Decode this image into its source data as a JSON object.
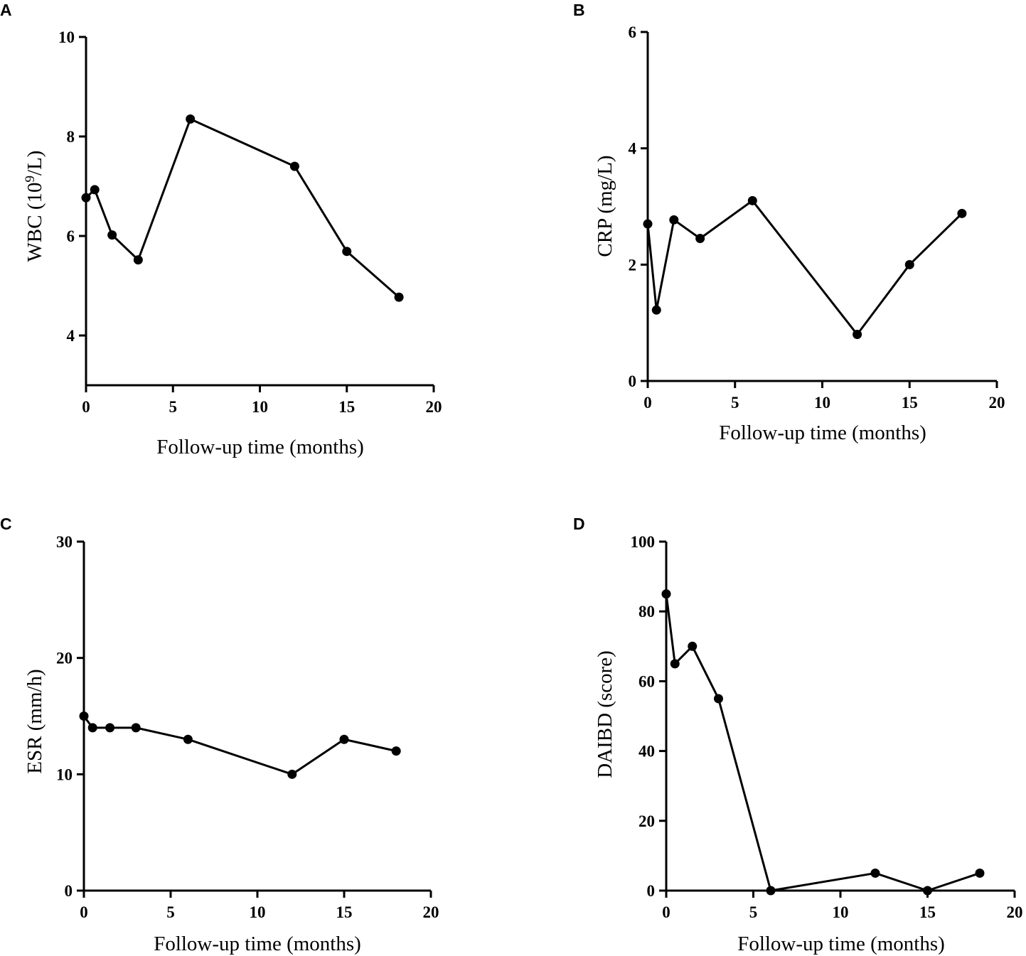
{
  "chart_data": [
    {
      "type": "line",
      "panel": "A",
      "x": [
        0,
        0.5,
        1.5,
        3,
        6,
        12,
        15,
        18
      ],
      "values": [
        6.77,
        6.93,
        6.02,
        5.52,
        8.35,
        7.4,
        5.69,
        4.77
      ],
      "xlabel": "Follow-up time (months)",
      "ylabel_main": "WBC (10",
      "ylabel_sup": "9",
      "ylabel_end": "/L)",
      "xlim": [
        0,
        20
      ],
      "ylim": [
        3,
        10
      ],
      "xticks": [
        0,
        5,
        10,
        15,
        20
      ],
      "yticks": [
        4,
        6,
        8,
        10
      ],
      "grid": false
    },
    {
      "type": "line",
      "panel": "B",
      "x": [
        0,
        0.5,
        1.5,
        3,
        6,
        12,
        15,
        18
      ],
      "values": [
        2.7,
        1.22,
        2.77,
        2.45,
        3.1,
        0.8,
        2.0,
        2.88
      ],
      "xlabel": "Follow-up time (months)",
      "ylabel": "CRP (mg/L)",
      "xlim": [
        0,
        20
      ],
      "ylim": [
        0,
        6
      ],
      "xticks": [
        0,
        5,
        10,
        15,
        20
      ],
      "yticks": [
        0,
        2,
        4,
        6
      ],
      "grid": false
    },
    {
      "type": "line",
      "panel": "C",
      "x": [
        0,
        0.5,
        1.5,
        3,
        6,
        12,
        15,
        18
      ],
      "values": [
        15,
        14,
        14,
        14,
        13,
        10,
        13,
        12
      ],
      "xlabel": "Follow-up time (months)",
      "ylabel": "ESR (mm/h)",
      "xlim": [
        0,
        20
      ],
      "ylim": [
        0,
        30
      ],
      "xticks": [
        0,
        5,
        10,
        15,
        20
      ],
      "yticks": [
        0,
        10,
        20,
        30
      ],
      "grid": false
    },
    {
      "type": "line",
      "panel": "D",
      "x": [
        0,
        0.5,
        1.5,
        3,
        6,
        12,
        15,
        18
      ],
      "values": [
        85,
        65,
        70,
        55,
        0,
        5,
        0,
        5
      ],
      "xlabel": "Follow-up time (months)",
      "ylabel": "DAIBD (score)",
      "xlim": [
        0,
        20
      ],
      "ylim": [
        0,
        100
      ],
      "xticks": [
        0,
        5,
        10,
        15,
        20
      ],
      "yticks": [
        0,
        20,
        40,
        60,
        80,
        100
      ],
      "grid": false
    }
  ]
}
